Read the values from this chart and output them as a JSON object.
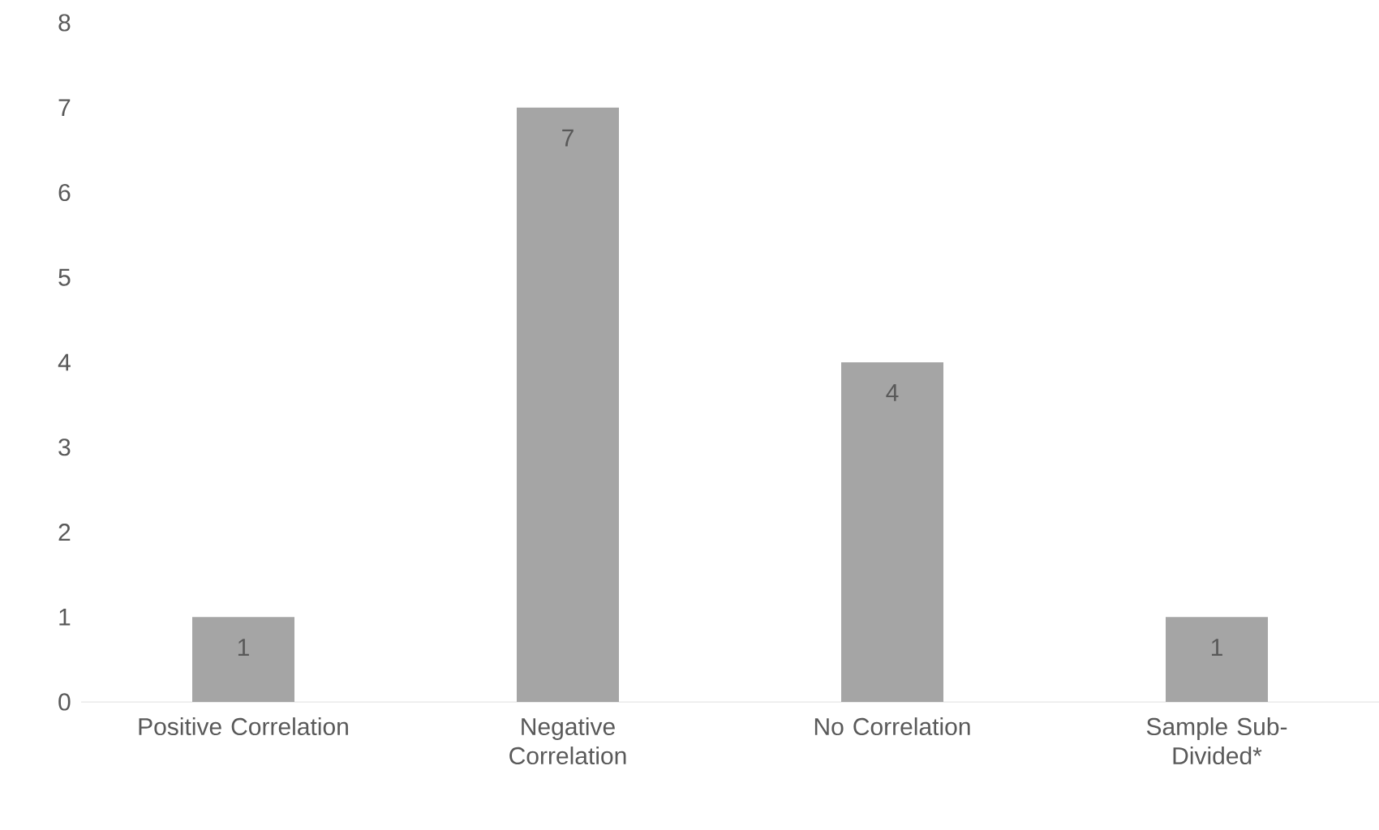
{
  "chart_data": {
    "type": "bar",
    "categories": [
      "Positive Correlation",
      "Negative Correlation",
      "No Correlation",
      "Sample Sub-Divided*"
    ],
    "values": [
      1,
      7,
      4,
      1
    ],
    "color": "#a5a5a5",
    "ylim": [
      0,
      8
    ],
    "yticks": [
      0,
      1,
      2,
      3,
      4,
      5,
      6,
      7,
      8
    ],
    "grid": false,
    "data_labels": true
  }
}
